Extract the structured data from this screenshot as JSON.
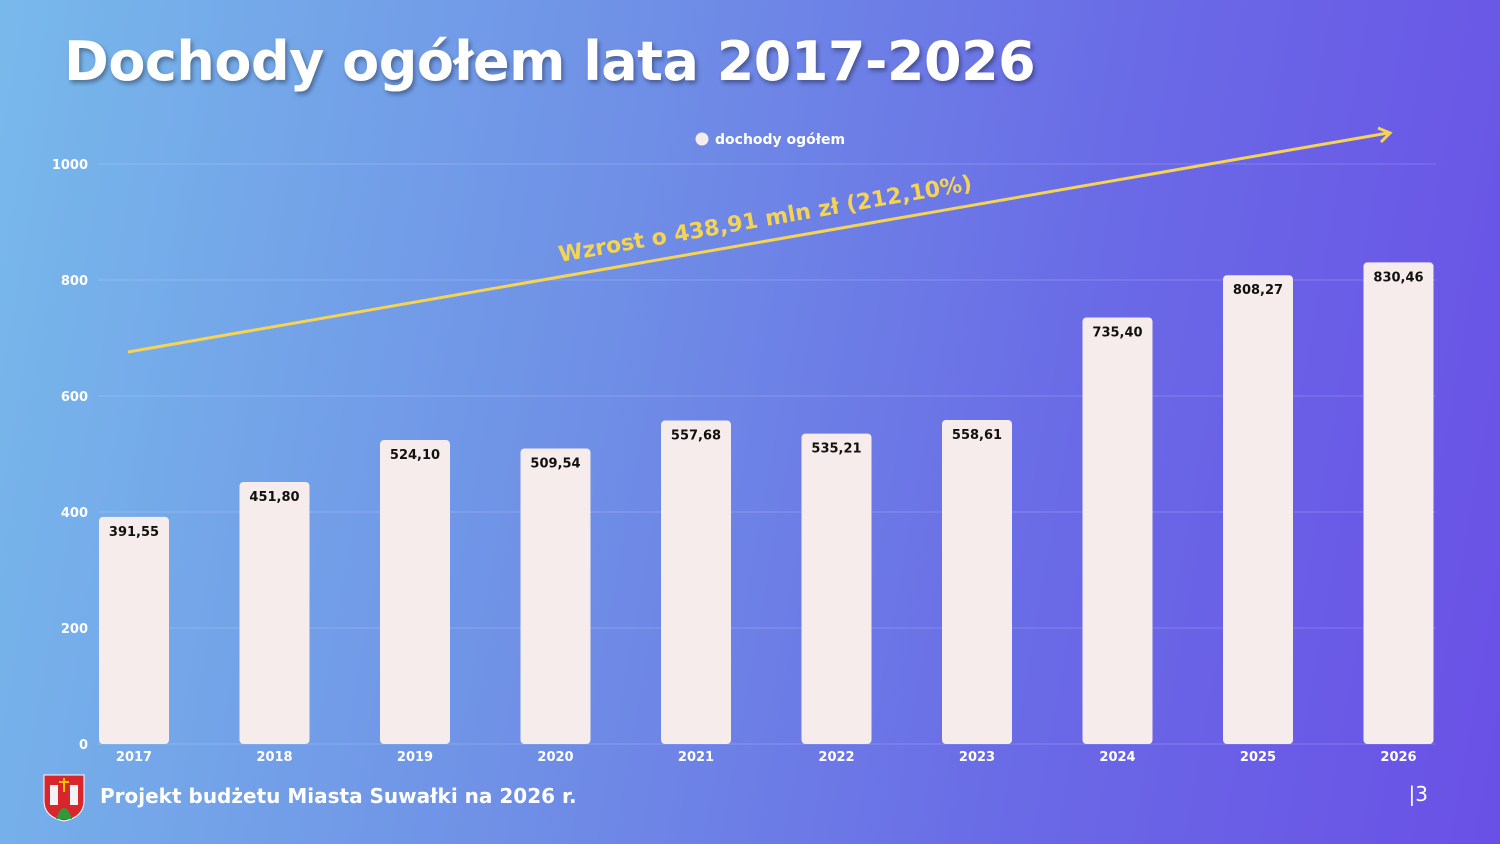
{
  "title": "Dochody ogółem lata 2017-2026",
  "footer": "Projekt budżetu Miasta Suwałki na 2026 r.",
  "page_number": "|3",
  "colors": {
    "bar": "#f7ecec",
    "arrow": "#f5d453",
    "annotation": "#f5d453"
  },
  "chart_data": {
    "type": "bar",
    "title": "",
    "legend": {
      "label": "dochody ogółem",
      "placement": "top-center"
    },
    "categories": [
      "2017",
      "2018",
      "2019",
      "2020",
      "2021",
      "2022",
      "2023",
      "2024",
      "2025",
      "2026"
    ],
    "values": [
      391.55,
      451.8,
      524.1,
      509.54,
      557.68,
      535.21,
      558.61,
      735.4,
      808.27,
      830.46
    ],
    "data_labels": [
      "391,55",
      "451,80",
      "524,10",
      "509,54",
      "557,68",
      "535,21",
      "558,61",
      "735,40",
      "808,27",
      "830,46"
    ],
    "yticks": [
      0,
      200,
      400,
      600,
      800,
      1000
    ],
    "ylim": [
      0,
      1000
    ],
    "grid": true,
    "annotation": "Wzrost o 438,91 mln zł (212,10%)"
  }
}
